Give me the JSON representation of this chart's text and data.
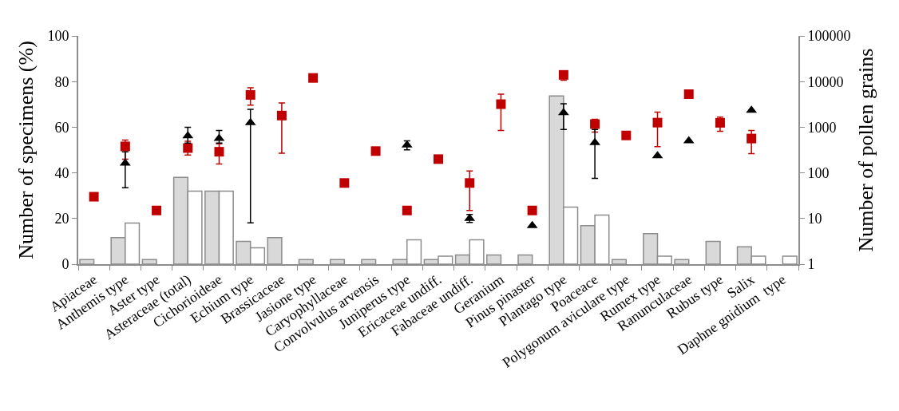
{
  "chart_data": {
    "type": "bar",
    "ylabel": "Number of specimens (%)",
    "y2label": "Number of pollen grains",
    "categories": [
      "Apiaceae",
      "Anthemis type",
      "Aster type",
      "Asteraceae (total)",
      "Cichorioideae",
      "Echium type",
      "Brassicaceae",
      "Jasione type",
      "Caryophyllaceae",
      "Convolvulus arvensis",
      "Juniperus type",
      "Ericaceae undiff.",
      "Fabaceae undiff.",
      "Geranium",
      "Pinus pinaster",
      "Plantago type",
      "Poaceace",
      "Polygonum aviculare type",
      "Rumex type",
      "Ranunculaceae",
      "Rubus type",
      "Salix",
      "Daphne gnidium  type"
    ],
    "series": [
      {
        "type": "bar",
        "color": "#d9d9d9",
        "values": [
          2,
          11.6,
          2,
          38,
          32,
          10,
          11.6,
          2,
          2,
          2,
          2,
          2,
          4,
          4,
          4,
          73.7,
          16.9,
          2,
          13.4,
          2,
          10,
          7.6,
          null
        ]
      },
      {
        "type": "bar",
        "color": "#ffffff",
        "values": [
          null,
          18,
          null,
          32,
          32,
          7.2,
          null,
          null,
          null,
          null,
          10.7,
          3.5,
          10.7,
          null,
          null,
          25,
          21.5,
          null,
          3.5,
          null,
          null,
          3.5,
          3.5
        ]
      },
      {
        "type": "scatter",
        "axis": "y2",
        "marker": "square",
        "color": "#c00000",
        "values": [
          30,
          380,
          15,
          350,
          290,
          5100,
          1800,
          12000,
          60,
          300,
          15,
          200,
          60,
          3200,
          15,
          14000,
          1170,
          660,
          1260,
          5300,
          1250,
          565,
          null
        ],
        "errors": [
          null,
          [
            200,
            525
          ],
          null,
          [
            245,
            490
          ],
          [
            156,
            430
          ],
          [
            3050,
            7300
          ],
          [
            270,
            3400
          ],
          null,
          null,
          null,
          null,
          null,
          [
            15,
            110
          ],
          [
            850,
            5300
          ],
          null,
          [
            10700,
            14000
          ],
          [
            780,
            1490
          ],
          null,
          [
            375,
            2150
          ],
          null,
          [
            815,
            1660
          ],
          [
            263,
            850
          ],
          null
        ]
      },
      {
        "type": "scatter",
        "axis": "y2",
        "marker": "triangle",
        "color": "#000000",
        "values": [
          null,
          163,
          null,
          645,
          565,
          1250,
          null,
          null,
          null,
          null,
          405,
          null,
          10,
          null,
          7,
          2080,
          460,
          null,
          236,
          500,
          null,
          2340,
          null
        ],
        "errors": [
          null,
          [
            47,
            290
          ],
          null,
          [
            450,
            1000
          ],
          [
            450,
            850
          ],
          [
            8,
            2470
          ],
          null,
          null,
          null,
          null,
          [
            320,
            500
          ],
          null,
          [
            8.2,
            12.3
          ],
          null,
          null,
          [
            890,
            3250
          ],
          [
            76,
            890
          ],
          null,
          null,
          null,
          null,
          null,
          null
        ]
      }
    ],
    "ylim": [
      0,
      100
    ],
    "yticks": [
      0,
      20,
      40,
      60,
      80,
      100
    ],
    "y2lim": [
      1,
      100000
    ],
    "y2ticks": [
      1,
      10,
      100,
      1000,
      10000,
      100000
    ],
    "log": "y2",
    "grid": false
  }
}
